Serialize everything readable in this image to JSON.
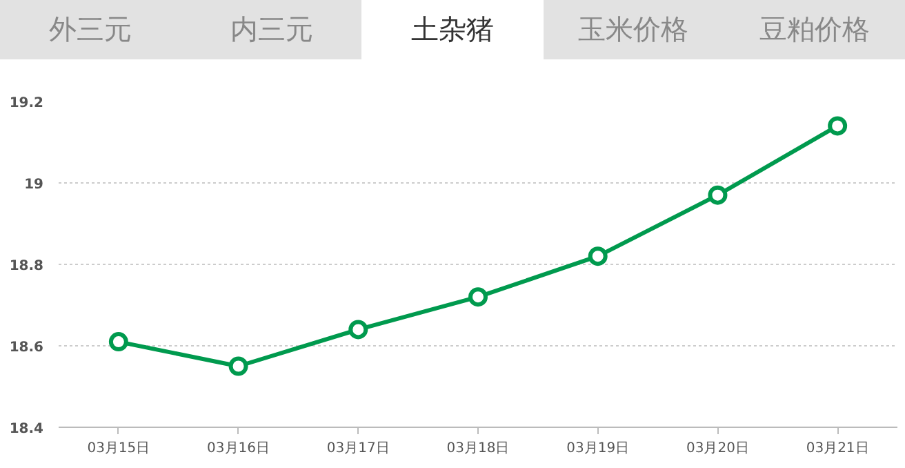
{
  "chart_data": {
    "type": "line",
    "title": "土杂猪",
    "annotations": [
      "外三元",
      "内三元",
      "玉米价格",
      "豆粕价格"
    ],
    "categories": [
      "03月15日",
      "03月16日",
      "03月17日",
      "03月18日",
      "03月19日",
      "03月20日",
      "03月21日"
    ],
    "series": [
      {
        "color": "#009a4e",
        "values": [
          18.61,
          18.55,
          18.64,
          18.72,
          18.82,
          18.97,
          19.14
        ]
      }
    ],
    "ylim": [
      18.4,
      19.2
    ],
    "yticks": [
      18.4,
      18.6,
      18.8,
      19,
      19.2
    ],
    "grid": "y",
    "marker": "circle",
    "line_style": "solid"
  }
}
